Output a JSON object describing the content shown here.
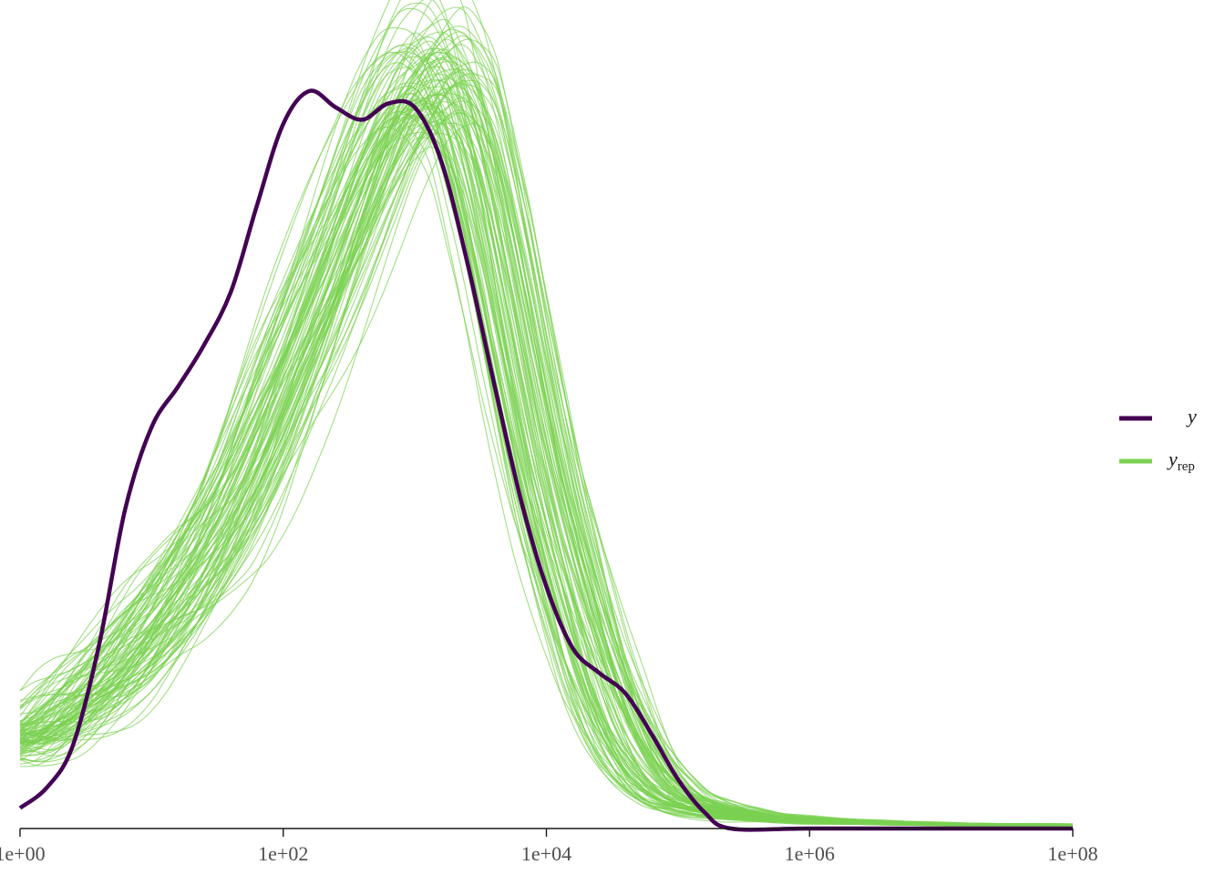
{
  "chart_data": {
    "type": "line",
    "title": "",
    "xlabel": "",
    "ylabel": "",
    "x_scale": "log10",
    "xlim": [
      1,
      100000000
    ],
    "ylim": [
      0,
      0.2
    ],
    "grid": false,
    "x_ticks": [
      {
        "value": 1,
        "label": "1e+00"
      },
      {
        "value": 100,
        "label": "1e+02"
      },
      {
        "value": 10000,
        "label": "1e+04"
      },
      {
        "value": 1000000,
        "label": "1e+06"
      },
      {
        "value": 100000000,
        "label": "1e+08"
      }
    ],
    "legend": {
      "position": "right",
      "entries": [
        {
          "key": "y",
          "label": "y",
          "subscript": "",
          "color": "#440154"
        },
        {
          "key": "yrep",
          "label": "y",
          "subscript": "rep",
          "color": "#7ad151"
        }
      ]
    },
    "series": [
      {
        "key": "y",
        "color": "#440154",
        "x": [
          1,
          1.6,
          2.5,
          4,
          6.3,
          10,
          16,
          25,
          40,
          63,
          100,
          158,
          251,
          398,
          631,
          1000,
          1585,
          2512,
          3981,
          6310,
          10000,
          15849,
          25119,
          39811,
          63096,
          100000,
          158489,
          251189,
          1000000,
          10000000,
          100000000
        ],
        "y": [
          0.005,
          0.01,
          0.02,
          0.045,
          0.078,
          0.098,
          0.108,
          0.118,
          0.131,
          0.152,
          0.172,
          0.18,
          0.176,
          0.173,
          0.177,
          0.176,
          0.163,
          0.138,
          0.109,
          0.081,
          0.059,
          0.044,
          0.038,
          0.033,
          0.023,
          0.012,
          0.004,
          0,
          0,
          0,
          0
        ]
      }
    ],
    "replicates": {
      "key": "yrep",
      "color": "#7ad151",
      "count": 100,
      "opacity": 0.7,
      "mean_curve": {
        "x": [
          1,
          1.6,
          2.5,
          4,
          6.3,
          10,
          16,
          25,
          40,
          63,
          100,
          158,
          251,
          398,
          631,
          1000,
          1585,
          2512,
          3981,
          6310,
          10000,
          15849,
          25119,
          39811,
          63096,
          100000,
          158489,
          251189,
          398107,
          1000000,
          10000000,
          100000000
        ],
        "y": [
          0.022,
          0.026,
          0.031,
          0.036,
          0.042,
          0.05,
          0.058,
          0.068,
          0.08,
          0.095,
          0.112,
          0.128,
          0.145,
          0.162,
          0.178,
          0.188,
          0.19,
          0.178,
          0.15,
          0.116,
          0.085,
          0.06,
          0.038,
          0.022,
          0.012,
          0.007,
          0.005,
          0.004,
          0.003,
          0.002,
          0.001,
          0.0008
        ]
      }
    }
  }
}
